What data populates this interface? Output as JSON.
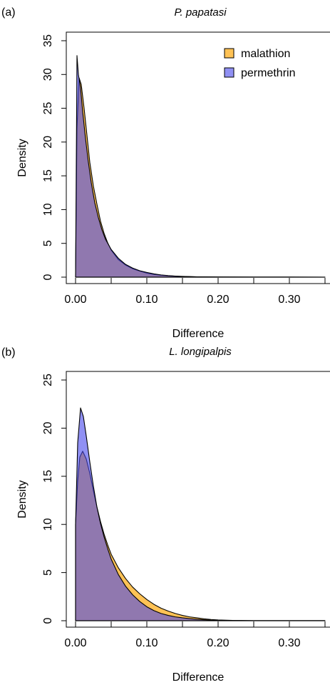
{
  "figure": {
    "title": ""
  },
  "chart_data": [
    {
      "type": "area",
      "panel_label": "(a)",
      "title": "P. papatasi",
      "xlabel": "Difference",
      "ylabel": "Density",
      "xlim": [
        0,
        0.35
      ],
      "ylim": [
        0,
        35
      ],
      "xticks": [
        0.0,
        0.1,
        0.2,
        0.3
      ],
      "xtick_labels": [
        "0.00",
        "0.10",
        "0.20",
        "0.30"
      ],
      "xminor_ticks": [
        0.05,
        0.15,
        0.25,
        0.35
      ],
      "yticks": [
        0,
        5,
        10,
        15,
        20,
        25,
        30,
        35
      ],
      "ytick_labels": [
        "0",
        "5",
        "10",
        "15",
        "20",
        "25",
        "30",
        "35"
      ],
      "grid": false,
      "legend_position": "top-right",
      "series": [
        {
          "name": "malathion",
          "color": "#f5b342",
          "x": [
            0,
            0.002,
            0.005,
            0.008,
            0.012,
            0.016,
            0.02,
            0.025,
            0.03,
            0.035,
            0.04,
            0.045,
            0.05,
            0.06,
            0.07,
            0.08,
            0.09,
            0.1,
            0.11,
            0.12,
            0.13,
            0.14,
            0.15,
            0.17,
            0.2,
            0.25,
            0.3,
            0.35
          ],
          "y": [
            0,
            22,
            29.5,
            28.5,
            25,
            21,
            17,
            13.5,
            10.8,
            8.3,
            6.5,
            5.1,
            4.0,
            2.6,
            1.8,
            1.25,
            0.9,
            0.6,
            0.4,
            0.28,
            0.2,
            0.14,
            0.1,
            0.05,
            0.02,
            0.005,
            0.002,
            0.001
          ]
        },
        {
          "name": "permethrin",
          "color": "#8080ef",
          "x": [
            0,
            0.002,
            0.004,
            0.007,
            0.01,
            0.014,
            0.018,
            0.022,
            0.027,
            0.032,
            0.037,
            0.042,
            0.05,
            0.06,
            0.07,
            0.08,
            0.09,
            0.1,
            0.11,
            0.12,
            0.13,
            0.14,
            0.15,
            0.17,
            0.2,
            0.25,
            0.3,
            0.35
          ],
          "y": [
            0,
            32.8,
            30,
            28,
            24.5,
            20.5,
            17,
            14,
            11,
            8.8,
            7,
            5.6,
            4.1,
            2.8,
            1.9,
            1.35,
            0.95,
            0.7,
            0.48,
            0.33,
            0.23,
            0.16,
            0.11,
            0.05,
            0.02,
            0.005,
            0.002,
            0.001
          ]
        }
      ]
    },
    {
      "type": "area",
      "panel_label": "(b)",
      "title": "L. longipalpis",
      "xlabel": "Difference",
      "ylabel": "Density",
      "xlim": [
        0,
        0.35
      ],
      "ylim": [
        0,
        25
      ],
      "xticks": [
        0.0,
        0.1,
        0.2,
        0.3
      ],
      "xtick_labels": [
        "0.00",
        "0.10",
        "0.20",
        "0.30"
      ],
      "xminor_ticks": [
        0.05,
        0.15,
        0.25,
        0.35
      ],
      "yticks": [
        0,
        5,
        10,
        15,
        20,
        25
      ],
      "ytick_labels": [
        "0",
        "5",
        "10",
        "15",
        "20",
        "25"
      ],
      "grid": false,
      "legend_position": "none",
      "series": [
        {
          "name": "malathion",
          "color": "#f5b342",
          "x": [
            0,
            0.003,
            0.006,
            0.01,
            0.015,
            0.02,
            0.025,
            0.03,
            0.035,
            0.04,
            0.045,
            0.05,
            0.06,
            0.07,
            0.08,
            0.09,
            0.1,
            0.11,
            0.12,
            0.13,
            0.14,
            0.15,
            0.16,
            0.17,
            0.18,
            0.19,
            0.2,
            0.22,
            0.25,
            0.3,
            0.35
          ],
          "y": [
            10,
            14.5,
            17,
            17.6,
            16.8,
            15.3,
            13.5,
            11.8,
            10.3,
            9.0,
            7.9,
            6.9,
            5.5,
            4.4,
            3.5,
            2.8,
            2.2,
            1.7,
            1.3,
            1.0,
            0.75,
            0.55,
            0.4,
            0.3,
            0.2,
            0.13,
            0.08,
            0.03,
            0.01,
            0.002,
            0.001
          ]
        },
        {
          "name": "permethrin",
          "color": "#8080ef",
          "x": [
            0,
            0.003,
            0.007,
            0.011,
            0.015,
            0.02,
            0.025,
            0.03,
            0.035,
            0.04,
            0.045,
            0.05,
            0.06,
            0.07,
            0.08,
            0.09,
            0.1,
            0.11,
            0.12,
            0.13,
            0.14,
            0.15,
            0.16,
            0.17,
            0.18,
            0.19,
            0.2,
            0.22,
            0.25,
            0.3,
            0.35
          ],
          "y": [
            10,
            18.5,
            22.1,
            21.2,
            19.2,
            16.5,
            14,
            11.8,
            10.1,
            8.7,
            7.5,
            6.4,
            4.8,
            3.6,
            2.7,
            2.0,
            1.45,
            1.05,
            0.75,
            0.55,
            0.4,
            0.3,
            0.22,
            0.15,
            0.1,
            0.06,
            0.04,
            0.02,
            0.008,
            0.002,
            0.001
          ]
        }
      ]
    }
  ]
}
